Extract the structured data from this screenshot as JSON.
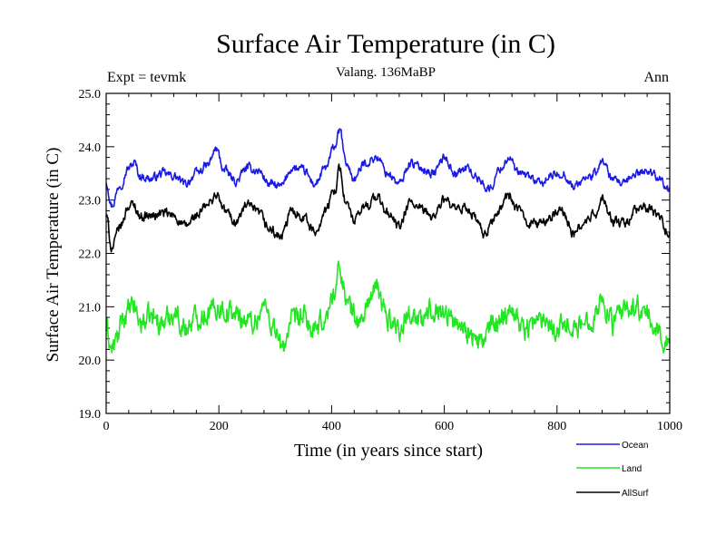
{
  "chart_data": {
    "type": "line",
    "title": "Surface Air Temperature (in C)",
    "subtitle": "Valang. 136MaBP",
    "left_label": "Expt = tevmk",
    "right_label": "Ann",
    "xlabel": "Time (in years since start)",
    "ylabel": "Surface Air Temperature (in C)",
    "xlim": [
      0,
      1000
    ],
    "ylim": [
      19.0,
      25.0
    ],
    "xticks": [
      0,
      200,
      400,
      600,
      800,
      1000
    ],
    "xtick_labels": [
      "0",
      "200",
      "400",
      "600",
      "800",
      "1000"
    ],
    "yticks": [
      19.0,
      20.0,
      21.0,
      22.0,
      23.0,
      24.0,
      25.0
    ],
    "ytick_labels": [
      "19.0",
      "20.0",
      "21.0",
      "22.0",
      "23.0",
      "24.0",
      "25.0"
    ],
    "legend_position": "bottom-right, outside plot",
    "series": [
      {
        "name": "Ocean",
        "color": "#1a1ae6",
        "x": [
          0,
          10,
          25,
          40,
          50,
          60,
          80,
          100,
          120,
          140,
          160,
          180,
          195,
          210,
          230,
          250,
          270,
          290,
          310,
          330,
          350,
          370,
          390,
          405,
          415,
          425,
          440,
          460,
          480,
          500,
          520,
          540,
          560,
          580,
          600,
          620,
          640,
          660,
          680,
          700,
          715,
          730,
          750,
          770,
          790,
          810,
          830,
          850,
          870,
          880,
          900,
          920,
          940,
          960,
          980,
          1000
        ],
        "y": [
          23.35,
          22.9,
          23.3,
          23.6,
          23.7,
          23.45,
          23.4,
          23.5,
          23.45,
          23.3,
          23.5,
          23.65,
          23.95,
          23.55,
          23.35,
          23.6,
          23.55,
          23.3,
          23.25,
          23.6,
          23.55,
          23.3,
          23.6,
          24.0,
          24.3,
          23.7,
          23.4,
          23.7,
          23.8,
          23.5,
          23.3,
          23.7,
          23.6,
          23.5,
          23.8,
          23.5,
          23.6,
          23.4,
          23.2,
          23.6,
          23.8,
          23.5,
          23.45,
          23.3,
          23.45,
          23.5,
          23.25,
          23.4,
          23.5,
          23.75,
          23.35,
          23.3,
          23.5,
          23.55,
          23.45,
          23.15
        ]
      },
      {
        "name": "Land",
        "color": "#22e622",
        "x": [
          0,
          10,
          20,
          30,
          40,
          50,
          60,
          80,
          100,
          120,
          140,
          160,
          180,
          200,
          220,
          240,
          260,
          280,
          300,
          310,
          330,
          350,
          370,
          390,
          405,
          415,
          430,
          450,
          470,
          480,
          500,
          520,
          540,
          560,
          580,
          600,
          620,
          640,
          660,
          670,
          690,
          710,
          720,
          740,
          760,
          780,
          800,
          820,
          840,
          860,
          880,
          900,
          920,
          940,
          960,
          980,
          1000
        ],
        "y": [
          20.6,
          20.2,
          20.4,
          20.8,
          20.9,
          21.0,
          20.7,
          20.8,
          20.7,
          20.9,
          20.6,
          20.8,
          20.9,
          21.0,
          20.9,
          20.8,
          20.7,
          21.0,
          20.6,
          20.2,
          20.7,
          20.8,
          20.5,
          20.8,
          21.3,
          21.7,
          21.0,
          20.7,
          21.2,
          21.3,
          20.8,
          20.6,
          20.9,
          20.7,
          21.0,
          20.9,
          20.7,
          20.6,
          20.3,
          20.4,
          20.7,
          20.9,
          21.0,
          20.6,
          20.7,
          20.8,
          20.6,
          20.7,
          20.6,
          20.8,
          21.1,
          20.7,
          20.9,
          21.0,
          20.8,
          20.5,
          20.3
        ]
      },
      {
        "name": "AllSurf",
        "color": "#000000",
        "x": [
          0,
          10,
          25,
          40,
          50,
          60,
          80,
          100,
          120,
          140,
          160,
          180,
          195,
          210,
          230,
          250,
          270,
          290,
          310,
          330,
          350,
          370,
          390,
          405,
          415,
          425,
          440,
          460,
          480,
          500,
          520,
          540,
          560,
          580,
          600,
          620,
          640,
          660,
          670,
          690,
          715,
          730,
          750,
          770,
          790,
          810,
          830,
          850,
          870,
          880,
          900,
          920,
          940,
          960,
          980,
          1000
        ],
        "y": [
          22.7,
          22.1,
          22.5,
          22.9,
          22.9,
          22.7,
          22.7,
          22.75,
          22.7,
          22.5,
          22.7,
          22.9,
          23.1,
          22.8,
          22.6,
          22.9,
          22.75,
          22.45,
          22.3,
          22.8,
          22.7,
          22.4,
          22.8,
          23.2,
          23.6,
          22.95,
          22.6,
          22.9,
          23.05,
          22.75,
          22.5,
          22.95,
          22.8,
          22.7,
          23.0,
          22.8,
          22.85,
          22.6,
          22.3,
          22.7,
          23.1,
          22.8,
          22.6,
          22.55,
          22.7,
          22.8,
          22.35,
          22.6,
          22.75,
          23.0,
          22.6,
          22.55,
          22.8,
          22.85,
          22.7,
          22.35
        ]
      }
    ]
  }
}
